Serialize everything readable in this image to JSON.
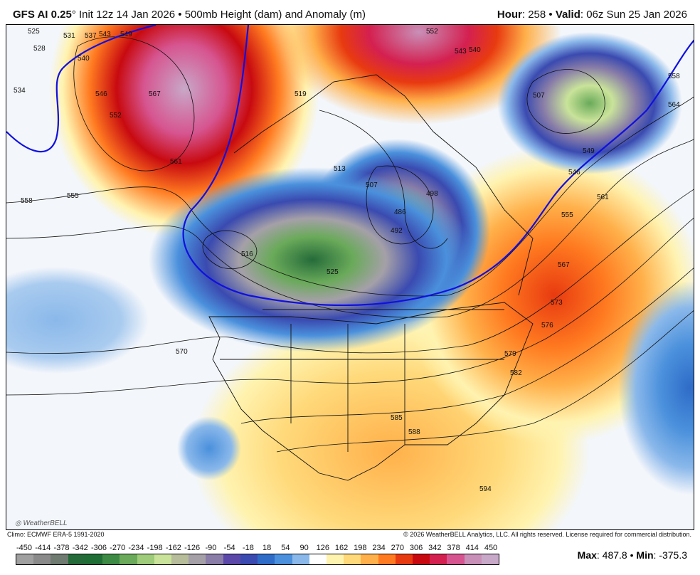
{
  "header": {
    "model": "GFS AI 0.25",
    "degree": "°",
    "init": "Init 12z 14 Jan 2026",
    "separator": "•",
    "product": "500mb Height (dam) and Anomaly (m)",
    "hour_label": "Hour",
    "hour": ": 258",
    "valid_label": "Valid",
    "valid": ": 06z Sun 25 Jan 2026"
  },
  "footer": {
    "climo": "Climo: ECMWF ERA-5 1991-2020",
    "copyright": "© 2026 WeatherBELL Analytics, LLC. All rights reserved. License required for commercial distribution.",
    "logo": "WeatherBELL"
  },
  "colorbar": {
    "ticks": [
      "-450",
      "-414",
      "-378",
      "-342",
      "-306",
      "-270",
      "-234",
      "-198",
      "-162",
      "-126",
      "-90",
      "-54",
      "-18",
      "18",
      "54",
      "90",
      "126",
      "162",
      "198",
      "234",
      "270",
      "306",
      "342",
      "378",
      "414",
      "450"
    ],
    "colors": [
      "#a0a0a0",
      "#8a8a8a",
      "#6f7a70",
      "#256b3a",
      "#1f6e35",
      "#3d8a45",
      "#6aaa5a",
      "#9fcc7a",
      "#c9e39a",
      "#b7bd9b",
      "#a5a0a8",
      "#8a7ea8",
      "#5c48a8",
      "#3a4ab0",
      "#2f6cc8",
      "#4a90dc",
      "#8ab8ea",
      "#ffffff",
      "#fff3b0",
      "#ffd97a",
      "#ffb04a",
      "#ff7a20",
      "#e83a10",
      "#c80a10",
      "#d42050",
      "#d65590",
      "#c890b8",
      "#c8a8c8"
    ]
  },
  "stats": {
    "max_label": "Max",
    "max": ": 487.8",
    "sep": "•",
    "min_label": "Min",
    "min": ": -375.3"
  },
  "contour_labels": [
    "525",
    "531",
    "537",
    "543",
    "549",
    "528",
    "534",
    "540",
    "546",
    "552",
    "561",
    "567",
    "558",
    "555",
    "570",
    "519",
    "513",
    "507",
    "486",
    "492",
    "498",
    "525",
    "516",
    "543",
    "540",
    "552",
    "507",
    "558",
    "564",
    "549",
    "546",
    "561",
    "555",
    "567",
    "573",
    "576",
    "579",
    "582",
    "585",
    "588",
    "594"
  ],
  "colors": {
    "line_540": "#1010e0",
    "contour": "#111111"
  }
}
